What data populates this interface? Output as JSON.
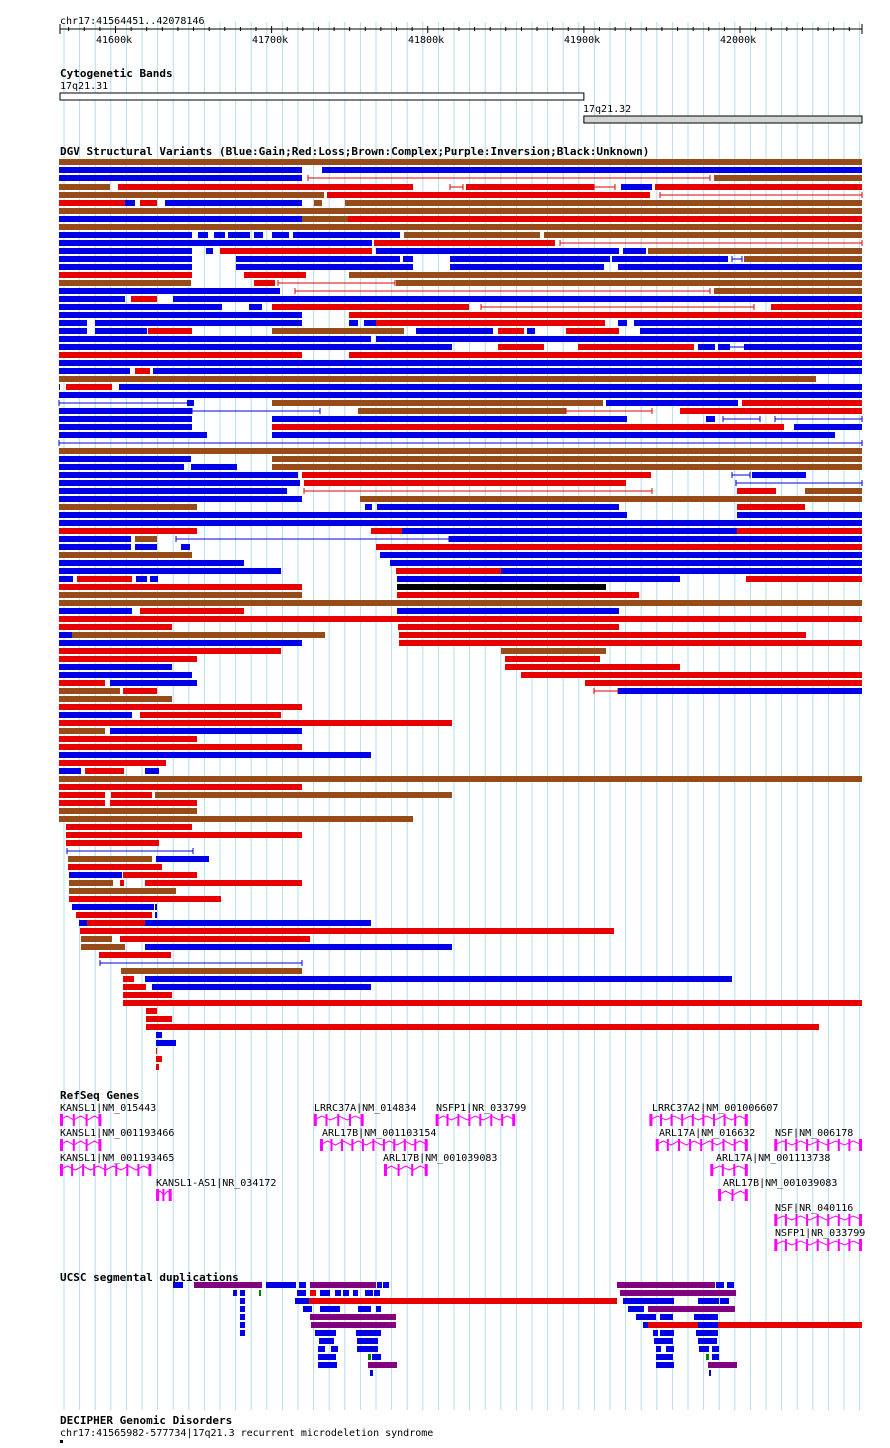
{
  "coords": "chr17:41564451..42078146",
  "ruler": {
    "start": 41564451,
    "end": 42078146,
    "ticks": [
      41600000,
      41700000,
      41800000,
      41900000,
      42000000
    ],
    "tick_labels": [
      "41600k",
      "41700k",
      "41800k",
      "41900k",
      "42000k"
    ]
  },
  "tracks": {
    "cyto": {
      "title": "Cytogenetic Bands",
      "bands": [
        {
          "name": "17q21.31",
          "start": 41564451,
          "end": 41900000,
          "fill": "#ffffff"
        },
        {
          "name": "17q21.32",
          "start": 41900000,
          "end": 42078146,
          "fill": "#d4d4d4"
        }
      ]
    },
    "dgv": {
      "title": "DGV Structural Variants (Blue:Gain;Red:Loss;Brown:Complex;Purple:Inversion;Black:Unknown)"
    },
    "refseq": {
      "title": "RefSeq Genes",
      "genes": [
        {
          "label": "KANSL1|NM_015443",
          "start": 41564451,
          "end": 41591000
        },
        {
          "label": "KANSL1|NM_001193466",
          "start": 41564451,
          "end": 41591000
        },
        {
          "label": "KANSL1|NM_001193465",
          "start": 41564451,
          "end": 41623000
        },
        {
          "label": "KANSL1-AS1|NR_034172",
          "start": 41626000,
          "end": 41636000
        },
        {
          "label": "LRRC37A|NM_014834",
          "start": 41727000,
          "end": 41759000
        },
        {
          "label": "NSFP1|NR_033799",
          "start": 41805000,
          "end": 41856000
        },
        {
          "label": "ARL17B|NM_001103154",
          "start": 41731000,
          "end": 41800000
        },
        {
          "label": "ARL17B|NM_001039083",
          "start": 41772000,
          "end": 41800000
        },
        {
          "label": "LRRC37A2|NM_001006607",
          "start": 41942000,
          "end": 42005000
        },
        {
          "label": "ARL17A|NM_016632",
          "start": 41946000,
          "end": 42005000
        },
        {
          "label": "NSF|NM_006178",
          "start": 42022000,
          "end": 42078146
        },
        {
          "label": "ARL17A|NM_001113738",
          "start": 41981000,
          "end": 42005000
        },
        {
          "label": "ARL17B|NM_001039083",
          "start": 41986000,
          "end": 42005000
        },
        {
          "label": "NSF|NR_040116",
          "start": 42022000,
          "end": 42078146
        },
        {
          "label": "NSFP1|NR_033799",
          "start": 42022000,
          "end": 42078146
        }
      ]
    },
    "segdup": {
      "title": "UCSC segmental duplications"
    },
    "decipher": {
      "title": "DECIPHER Genomic Disorders",
      "feature": "chr17:41565982-577734|17q21.3 recurrent microdeletion syndrome"
    }
  },
  "colors": {
    "gain": "#0000e6",
    "loss": "#e60000",
    "complex": "#964b19",
    "unknown": "#000000",
    "gene": "#ff00ff",
    "segdup_purple": "#800080",
    "segdup_green": "#008000",
    "segdup_blue": "#0000e6",
    "segdup_red": "#e60000",
    "grid": "#b4dced"
  },
  "legend": [
    "Blue:Gain",
    "Red:Loss",
    "Brown:Complex",
    "Purple:Inversion",
    "Black:Unknown"
  ]
}
